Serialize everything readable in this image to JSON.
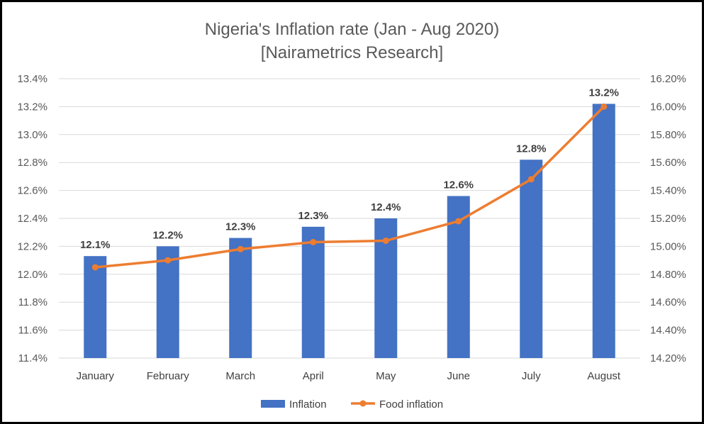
{
  "chart_data": {
    "type": "bar",
    "title": "Nigeria's Inflation rate (Jan - Aug 2020)",
    "subtitle": "[Nairametrics Research]",
    "categories": [
      "January",
      "February",
      "March",
      "April",
      "May",
      "June",
      "July",
      "August"
    ],
    "series": [
      {
        "name": "Inflation",
        "type": "bar",
        "axis": "left",
        "color": "#4472C4",
        "values": [
          12.13,
          12.2,
          12.26,
          12.34,
          12.4,
          12.56,
          12.82,
          13.22
        ],
        "data_labels": [
          "12.1%",
          "12.2%",
          "12.3%",
          "12.3%",
          "12.4%",
          "12.6%",
          "12.8%",
          "13.2%"
        ]
      },
      {
        "name": "Food inflation",
        "type": "line",
        "axis": "right",
        "color": "#ED7D31",
        "values": [
          14.85,
          14.9,
          14.98,
          15.03,
          15.04,
          15.18,
          15.48,
          16.0
        ]
      }
    ],
    "y_left": {
      "lim": [
        11.4,
        13.4
      ],
      "ticks": [
        "11.4%",
        "11.6%",
        "11.8%",
        "12.0%",
        "12.2%",
        "12.4%",
        "12.6%",
        "12.8%",
        "13.0%",
        "13.2%",
        "13.4%"
      ]
    },
    "y_right": {
      "lim": [
        14.2,
        16.2
      ],
      "ticks": [
        "14.20%",
        "14.40%",
        "14.60%",
        "14.80%",
        "15.00%",
        "15.20%",
        "15.40%",
        "15.60%",
        "15.80%",
        "16.00%",
        "16.20%"
      ]
    },
    "grid": true,
    "legend_position": "bottom",
    "colors": {
      "gridline": "#D9D9D9",
      "axis_text": "#595959"
    }
  }
}
